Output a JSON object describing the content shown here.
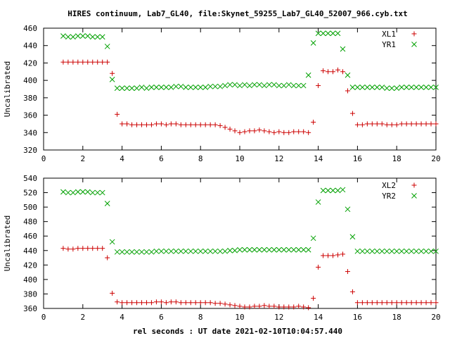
{
  "chart_data": [
    {
      "type": "scatter",
      "title": "HIRES continuum, Lab7_GL40, file:Skynet_59255_Lab7_GL40_52007_966.cyb.txt",
      "ylabel": "Uncalibrated",
      "xlabel": "",
      "xlim": [
        0,
        20
      ],
      "ylim": [
        320,
        460
      ],
      "xticks": [
        0,
        2,
        4,
        6,
        8,
        10,
        12,
        14,
        16,
        18,
        20
      ],
      "yticks": [
        320,
        340,
        360,
        380,
        400,
        420,
        440,
        460
      ],
      "legend_position": "top-right",
      "series": [
        {
          "name": "XL1",
          "marker": "plus",
          "color": "#cc0000",
          "x": [
            1.0,
            1.25,
            1.5,
            1.75,
            2.0,
            2.25,
            2.5,
            2.75,
            3.0,
            3.25,
            3.5,
            3.75,
            4.0,
            4.25,
            4.5,
            4.75,
            5.0,
            5.25,
            5.5,
            5.75,
            6.0,
            6.25,
            6.5,
            6.75,
            7.0,
            7.25,
            7.5,
            7.75,
            8.0,
            8.25,
            8.5,
            8.75,
            9.0,
            9.25,
            9.5,
            9.75,
            10.0,
            10.25,
            10.5,
            10.75,
            11.0,
            11.25,
            11.5,
            11.75,
            12.0,
            12.25,
            12.5,
            12.75,
            13.0,
            13.25,
            13.5,
            13.75,
            14.0,
            14.25,
            14.5,
            14.75,
            15.0,
            15.25,
            15.5,
            15.75,
            16.0,
            16.25,
            16.5,
            16.75,
            17.0,
            17.25,
            17.5,
            17.75,
            18.0,
            18.25,
            18.5,
            18.75,
            19.0,
            19.25,
            19.5,
            19.75,
            20.0
          ],
          "y": [
            421,
            421,
            421,
            421,
            421,
            421,
            421,
            421,
            421,
            421,
            408,
            361,
            350,
            350,
            349,
            349,
            349,
            349,
            349,
            350,
            350,
            349,
            350,
            350,
            349,
            349,
            349,
            349,
            349,
            349,
            349,
            349,
            348,
            346,
            344,
            342,
            340,
            341,
            342,
            342,
            343,
            342,
            341,
            340,
            341,
            340,
            340,
            341,
            341,
            341,
            340,
            352,
            394,
            411,
            410,
            410,
            412,
            410,
            388,
            362,
            349,
            349,
            350,
            350,
            350,
            350,
            349,
            349,
            349,
            350,
            350,
            350,
            350,
            350,
            350,
            350,
            350
          ]
        },
        {
          "name": "YR1",
          "marker": "cross",
          "color": "#00a000",
          "x": [
            1.0,
            1.25,
            1.5,
            1.75,
            2.0,
            2.25,
            2.5,
            2.75,
            3.0,
            3.25,
            3.5,
            3.75,
            4.0,
            4.25,
            4.5,
            4.75,
            5.0,
            5.25,
            5.5,
            5.75,
            6.0,
            6.25,
            6.5,
            6.75,
            7.0,
            7.25,
            7.5,
            7.75,
            8.0,
            8.25,
            8.5,
            8.75,
            9.0,
            9.25,
            9.5,
            9.75,
            10.0,
            10.25,
            10.5,
            10.75,
            11.0,
            11.25,
            11.5,
            11.75,
            12.0,
            12.25,
            12.5,
            12.75,
            13.0,
            13.25,
            13.5,
            13.75,
            14.0,
            14.25,
            14.5,
            14.75,
            15.0,
            15.25,
            15.5,
            15.75,
            16.0,
            16.25,
            16.5,
            16.75,
            17.0,
            17.25,
            17.5,
            17.75,
            18.0,
            18.25,
            18.5,
            18.75,
            19.0,
            19.25,
            19.5,
            19.75,
            20.0
          ],
          "y": [
            451,
            450,
            450,
            451,
            451,
            451,
            450,
            450,
            450,
            439,
            401,
            391,
            391,
            391,
            391,
            391,
            392,
            391,
            392,
            392,
            392,
            392,
            392,
            393,
            393,
            392,
            392,
            392,
            392,
            392,
            393,
            393,
            393,
            394,
            395,
            395,
            394,
            395,
            394,
            395,
            395,
            394,
            395,
            395,
            394,
            394,
            395,
            394,
            394,
            394,
            406,
            443,
            454,
            454,
            454,
            454,
            454,
            436,
            406,
            392,
            392,
            392,
            392,
            392,
            392,
            392,
            391,
            391,
            391,
            392,
            392,
            392,
            392,
            392,
            392,
            392,
            392
          ]
        }
      ]
    },
    {
      "type": "scatter",
      "title": "",
      "ylabel": "Uncalibrated",
      "xlabel": "rel seconds : UT date 2021-02-10T10:04:57.440",
      "xlim": [
        0,
        20
      ],
      "ylim": [
        360,
        540
      ],
      "xticks": [
        0,
        2,
        4,
        6,
        8,
        10,
        12,
        14,
        16,
        18,
        20
      ],
      "yticks": [
        360,
        380,
        400,
        420,
        440,
        460,
        480,
        500,
        520,
        540
      ],
      "legend_position": "top-right",
      "series": [
        {
          "name": "XL2",
          "marker": "plus",
          "color": "#cc0000",
          "x": [
            1.0,
            1.25,
            1.5,
            1.75,
            2.0,
            2.25,
            2.5,
            2.75,
            3.0,
            3.25,
            3.5,
            3.75,
            4.0,
            4.25,
            4.5,
            4.75,
            5.0,
            5.25,
            5.5,
            5.75,
            6.0,
            6.25,
            6.5,
            6.75,
            7.0,
            7.25,
            7.5,
            7.75,
            8.0,
            8.25,
            8.5,
            8.75,
            9.0,
            9.25,
            9.5,
            9.75,
            10.0,
            10.25,
            10.5,
            10.75,
            11.0,
            11.25,
            11.5,
            11.75,
            12.0,
            12.25,
            12.5,
            12.75,
            13.0,
            13.25,
            13.5,
            13.75,
            14.0,
            14.25,
            14.5,
            14.75,
            15.0,
            15.25,
            15.5,
            15.75,
            16.0,
            16.25,
            16.5,
            16.75,
            17.0,
            17.25,
            17.5,
            17.75,
            18.0,
            18.25,
            18.5,
            18.75,
            19.0,
            19.25,
            19.5,
            19.75,
            20.0
          ],
          "y": [
            443,
            442,
            442,
            443,
            443,
            443,
            443,
            443,
            443,
            430,
            381,
            369,
            368,
            368,
            368,
            368,
            368,
            368,
            368,
            369,
            369,
            368,
            369,
            369,
            368,
            368,
            368,
            368,
            368,
            368,
            368,
            367,
            367,
            366,
            365,
            364,
            363,
            362,
            362,
            363,
            363,
            364,
            363,
            363,
            362,
            362,
            362,
            362,
            363,
            362,
            361,
            374,
            417,
            433,
            433,
            433,
            434,
            435,
            411,
            383,
            368,
            368,
            368,
            368,
            368,
            368,
            368,
            368,
            368,
            368,
            368,
            368,
            368,
            368,
            368,
            368,
            368
          ]
        },
        {
          "name": "YR2",
          "marker": "cross",
          "color": "#00a000",
          "x": [
            1.0,
            1.25,
            1.5,
            1.75,
            2.0,
            2.25,
            2.5,
            2.75,
            3.0,
            3.25,
            3.5,
            3.75,
            4.0,
            4.25,
            4.5,
            4.75,
            5.0,
            5.25,
            5.5,
            5.75,
            6.0,
            6.25,
            6.5,
            6.75,
            7.0,
            7.25,
            7.5,
            7.75,
            8.0,
            8.25,
            8.5,
            8.75,
            9.0,
            9.25,
            9.5,
            9.75,
            10.0,
            10.25,
            10.5,
            10.75,
            11.0,
            11.25,
            11.5,
            11.75,
            12.0,
            12.25,
            12.5,
            12.75,
            13.0,
            13.25,
            13.5,
            13.75,
            14.0,
            14.25,
            14.5,
            14.75,
            15.0,
            15.25,
            15.5,
            15.75,
            16.0,
            16.25,
            16.5,
            16.75,
            17.0,
            17.25,
            17.5,
            17.75,
            18.0,
            18.25,
            18.5,
            18.75,
            19.0,
            19.25,
            19.5,
            19.75,
            20.0
          ],
          "y": [
            521,
            520,
            520,
            521,
            521,
            521,
            520,
            520,
            520,
            505,
            452,
            438,
            438,
            438,
            438,
            438,
            438,
            438,
            438,
            439,
            439,
            439,
            439,
            439,
            439,
            439,
            439,
            439,
            439,
            439,
            439,
            439,
            439,
            439,
            440,
            440,
            441,
            441,
            441,
            441,
            441,
            441,
            441,
            441,
            441,
            441,
            441,
            441,
            441,
            441,
            441,
            457,
            507,
            523,
            523,
            523,
            523,
            524,
            497,
            459,
            439,
            439,
            439,
            439,
            439,
            439,
            439,
            439,
            439,
            439,
            439,
            439,
            439,
            439,
            439,
            439,
            439
          ]
        }
      ]
    }
  ]
}
